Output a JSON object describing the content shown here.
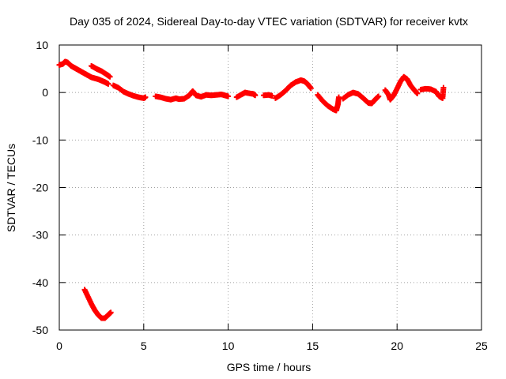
{
  "chart_data": {
    "type": "scatter",
    "title": "Day 035 of 2024, Sidereal Day-to-day VTEC variation (SDTVAR) for receiver kvtx",
    "xlabel": "GPS time / hours",
    "ylabel": "SDTVAR / TECUs",
    "xlim": [
      0,
      25
    ],
    "ylim": [
      -50,
      10
    ],
    "xticks": [
      0,
      5,
      10,
      15,
      20,
      25
    ],
    "yticks": [
      -50,
      -40,
      -30,
      -20,
      -10,
      0,
      10
    ],
    "xtick_labels": [
      "0",
      "5",
      "10",
      "15",
      "20",
      "25"
    ],
    "ytick_labels": [
      "-50",
      "-40",
      "-30",
      "-20",
      "-10",
      "0",
      "10"
    ],
    "grid": true,
    "marker": "plus",
    "series": [
      {
        "name": "SDTVAR",
        "color": "#ff0000",
        "segments": [
          [
            [
              0.0,
              5.8
            ],
            [
              0.2,
              6.0
            ],
            [
              0.35,
              6.5
            ],
            [
              0.5,
              6.3
            ],
            [
              0.7,
              5.6
            ],
            [
              0.9,
              5.2
            ],
            [
              1.1,
              4.8
            ],
            [
              1.3,
              4.4
            ],
            [
              1.5,
              4.0
            ],
            [
              1.7,
              3.6
            ],
            [
              1.9,
              3.2
            ],
            [
              2.1,
              3.0
            ],
            [
              2.3,
              2.8
            ],
            [
              2.5,
              2.5
            ],
            [
              2.7,
              2.2
            ],
            [
              2.9,
              1.8
            ]
          ],
          [
            [
              1.9,
              5.6
            ],
            [
              2.2,
              5.0
            ],
            [
              2.5,
              4.5
            ],
            [
              2.8,
              3.8
            ],
            [
              3.0,
              3.3
            ]
          ],
          [
            [
              1.5,
              -41.5
            ],
            [
              1.7,
              -43.0
            ],
            [
              1.9,
              -44.5
            ],
            [
              2.1,
              -45.8
            ],
            [
              2.3,
              -46.8
            ],
            [
              2.5,
              -47.5
            ],
            [
              2.7,
              -47.5
            ],
            [
              2.9,
              -46.8
            ],
            [
              3.05,
              -46.3
            ]
          ],
          [
            [
              3.2,
              1.5
            ],
            [
              3.5,
              1.0
            ],
            [
              3.8,
              0.2
            ],
            [
              4.1,
              -0.3
            ],
            [
              4.4,
              -0.7
            ],
            [
              4.7,
              -1.0
            ],
            [
              5.0,
              -1.2
            ],
            [
              5.1,
              -1.0
            ]
          ],
          [
            [
              5.7,
              -0.8
            ],
            [
              6.0,
              -1.0
            ],
            [
              6.3,
              -1.3
            ],
            [
              6.6,
              -1.5
            ],
            [
              6.9,
              -1.2
            ],
            [
              7.1,
              -1.4
            ],
            [
              7.4,
              -1.3
            ],
            [
              7.7,
              -0.6
            ],
            [
              7.9,
              0.3
            ],
            [
              8.1,
              -0.6
            ],
            [
              8.4,
              -0.9
            ],
            [
              8.7,
              -0.5
            ],
            [
              9.0,
              -0.6
            ],
            [
              9.3,
              -0.5
            ],
            [
              9.6,
              -0.4
            ],
            [
              9.8,
              -0.6
            ],
            [
              10.0,
              -0.8
            ]
          ],
          [
            [
              10.5,
              -1.0
            ],
            [
              10.8,
              -0.4
            ],
            [
              11.0,
              0.0
            ],
            [
              11.3,
              -0.2
            ],
            [
              11.5,
              -0.3
            ],
            [
              11.6,
              -0.6
            ]
          ],
          [
            [
              12.1,
              -0.6
            ],
            [
              12.4,
              -0.5
            ],
            [
              12.6,
              -0.7
            ]
          ],
          [
            [
              12.8,
              -1.2
            ],
            [
              13.1,
              -0.5
            ],
            [
              13.4,
              0.4
            ],
            [
              13.7,
              1.5
            ],
            [
              14.0,
              2.2
            ],
            [
              14.3,
              2.6
            ],
            [
              14.5,
              2.4
            ],
            [
              14.7,
              1.8
            ],
            [
              14.9,
              0.9
            ]
          ],
          [
            [
              15.3,
              -0.5
            ],
            [
              15.6,
              -1.8
            ],
            [
              15.9,
              -2.8
            ],
            [
              16.2,
              -3.5
            ],
            [
              16.4,
              -3.8
            ],
            [
              16.5,
              -2.5
            ],
            [
              16.55,
              -1.0
            ]
          ],
          [
            [
              16.8,
              -1.3
            ],
            [
              17.1,
              -0.5
            ],
            [
              17.4,
              0.0
            ],
            [
              17.7,
              -0.3
            ],
            [
              18.0,
              -1.2
            ],
            [
              18.3,
              -2.2
            ],
            [
              18.5,
              -2.3
            ],
            [
              18.7,
              -1.5
            ],
            [
              18.9,
              -0.8
            ]
          ],
          [
            [
              19.3,
              0.5
            ],
            [
              19.5,
              -0.5
            ],
            [
              19.6,
              -1.5
            ],
            [
              19.8,
              -0.6
            ],
            [
              20.0,
              0.8
            ],
            [
              20.2,
              2.3
            ],
            [
              20.4,
              3.3
            ],
            [
              20.6,
              2.8
            ],
            [
              20.8,
              1.5
            ],
            [
              21.0,
              0.6
            ],
            [
              21.2,
              -0.2
            ]
          ],
          [
            [
              21.4,
              0.6
            ],
            [
              21.7,
              0.8
            ],
            [
              22.0,
              0.7
            ],
            [
              22.3,
              0.2
            ],
            [
              22.5,
              -0.8
            ],
            [
              22.7,
              -1.2
            ],
            [
              22.75,
              1.0
            ]
          ]
        ]
      }
    ]
  }
}
